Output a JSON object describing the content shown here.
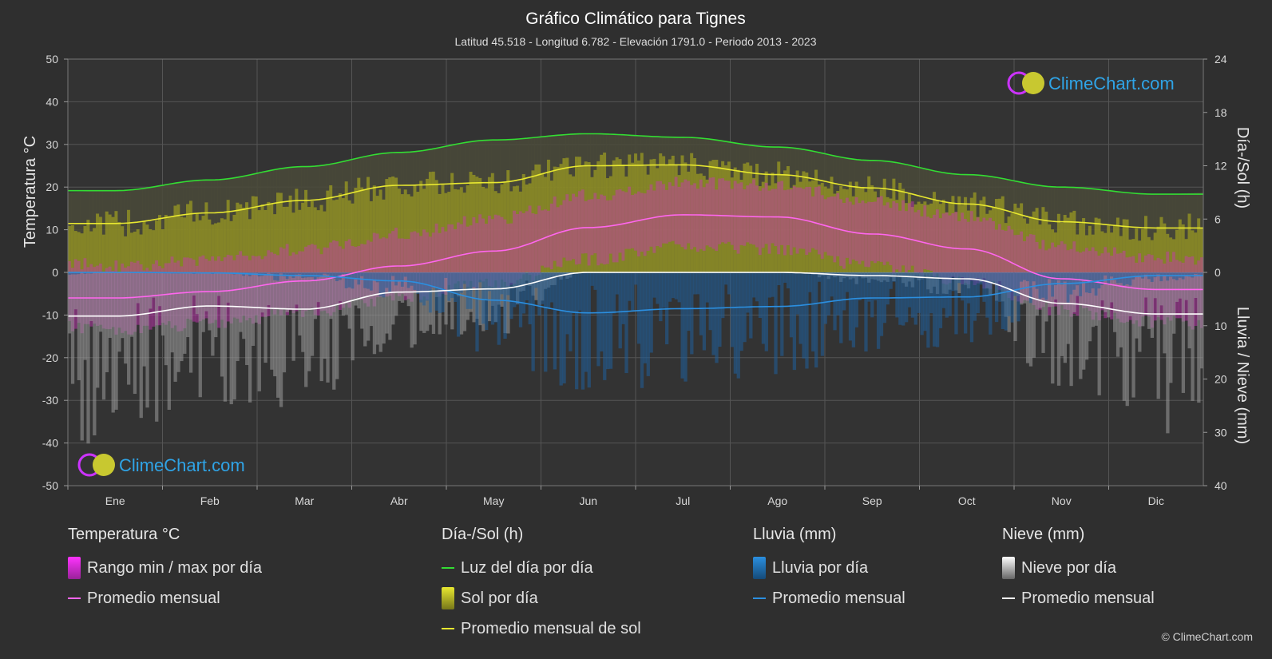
{
  "header": {
    "title": "Gráfico Climático para Tignes",
    "subtitle": "Latitud 45.518 - Longitud 6.782 - Elevación 1791.0 - Periodo 2013 - 2023"
  },
  "axes": {
    "left_title": "Temperatura °C",
    "right_top_title": "Día-/Sol (h)",
    "right_bottom_title": "Lluvia / Nieve (mm)",
    "left_ticks": [
      "50",
      "40",
      "30",
      "20",
      "10",
      "0",
      "-10",
      "-20",
      "-30",
      "-40",
      "-50"
    ],
    "right_top_ticks": [
      "24",
      "18",
      "12",
      "6",
      "0"
    ],
    "right_bottom_ticks": [
      "10",
      "20",
      "30",
      "40"
    ]
  },
  "logo": {
    "text": "ClimeChart.com"
  },
  "copyright": "© ClimeChart.com",
  "legend": {
    "temp": {
      "header": "Temperatura °C",
      "range_label": "Rango min / max por día",
      "avg_label": "Promedio mensual"
    },
    "sun": {
      "header": "Día-/Sol (h)",
      "daylight_label": "Luz del día por día",
      "sun_label": "Sol por día",
      "avg_sun_label": "Promedio mensual de sol"
    },
    "rain": {
      "header": "Lluvia (mm)",
      "rain_label": "Lluvia por día",
      "avg_label": "Promedio mensual"
    },
    "snow": {
      "header": "Nieve (mm)",
      "snow_label": "Nieve por día",
      "avg_label": "Promedio mensual"
    }
  },
  "colors": {
    "background": "#2f2f2f",
    "daylight": "#33dd33",
    "sunshine_avg": "#e8e830",
    "sunshine_fill": "#9a9a22",
    "temp_avg": "#ff66ee",
    "temp_range": "#cc33bb",
    "rain_avg": "#2b8fe0",
    "rain_fill": "#1f5f9a",
    "snow_avg": "#ffffff",
    "snow_fill": "#9a9a9a"
  },
  "chart_data": {
    "type": "line",
    "categories": [
      "Ene",
      "Feb",
      "Mar",
      "Abr",
      "May",
      "Jun",
      "Jul",
      "Ago",
      "Sep",
      "Oct",
      "Nov",
      "Dic"
    ],
    "ylim_temperature": [
      -50,
      50
    ],
    "ylim_sun_hours": [
      0,
      24
    ],
    "ylim_precip_mm": [
      0,
      40
    ],
    "grid": true,
    "series": [
      {
        "name": "Luz del día por día",
        "unit": "h",
        "axis": "sun",
        "values": [
          9.2,
          10.4,
          11.9,
          13.5,
          14.9,
          15.6,
          15.2,
          14.1,
          12.6,
          11.0,
          9.6,
          8.8
        ]
      },
      {
        "name": "Promedio mensual de sol",
        "unit": "h",
        "axis": "sun",
        "values": [
          5.5,
          6.7,
          8.1,
          9.8,
          10.1,
          12.0,
          12.1,
          11.0,
          9.5,
          7.7,
          5.7,
          5.0
        ]
      },
      {
        "name": "Temperatura promedio mensual",
        "unit": "°C",
        "axis": "temperature",
        "values": [
          -6.0,
          -4.5,
          -2.0,
          1.5,
          5.0,
          10.5,
          13.5,
          13.0,
          9.0,
          5.5,
          -1.5,
          -4.0
        ]
      },
      {
        "name": "Lluvia promedio mensual",
        "unit": "mm",
        "axis": "precip",
        "values": [
          0.0,
          0.1,
          0.6,
          1.6,
          5.2,
          7.6,
          6.8,
          6.4,
          4.8,
          4.6,
          2.1,
          0.6
        ]
      },
      {
        "name": "Nieve promedio mensual",
        "unit": "mm",
        "axis": "precip",
        "values": [
          8.2,
          6.3,
          6.9,
          3.7,
          3.1,
          0.0,
          0.0,
          0.0,
          0.6,
          1.2,
          5.8,
          7.8
        ]
      }
    ]
  }
}
